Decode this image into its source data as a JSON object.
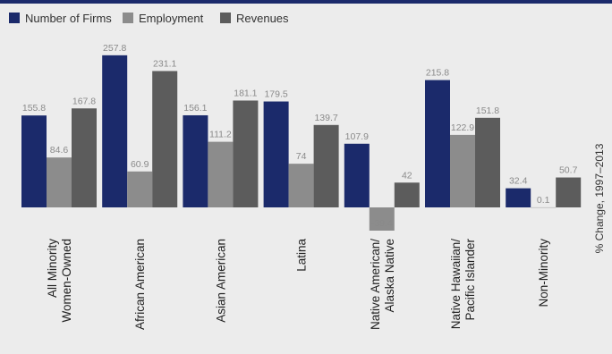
{
  "chart_data": {
    "type": "bar",
    "categories": [
      [
        "All Minority",
        "Women-Owned"
      ],
      [
        "African American"
      ],
      [
        "Asian American"
      ],
      [
        "Latina"
      ],
      [
        "Native American/",
        "Alaska Native"
      ],
      [
        "Native Hawaiian/",
        "Pacific Islander"
      ],
      [
        "Non-Minority"
      ]
    ],
    "series": [
      {
        "name": "Number of Firms",
        "color": "#1b2a6b",
        "values": [
          155.8,
          257.8,
          156.1,
          179.5,
          107.9,
          215.8,
          32.4
        ]
      },
      {
        "name": "Employment",
        "color": "#8c8c8c",
        "values": [
          84.6,
          60.9,
          111.2,
          74,
          -39.4,
          122.9,
          0.1
        ]
      },
      {
        "name": "Revenues",
        "color": "#5c5c5c",
        "values": [
          167.8,
          231.1,
          181.1,
          139.7,
          42,
          151.8,
          50.7
        ]
      }
    ],
    "ylabel": "% Change, 1997–2013",
    "ylim": [
      -50,
      280
    ],
    "grid": false,
    "legend": "top-left"
  }
}
